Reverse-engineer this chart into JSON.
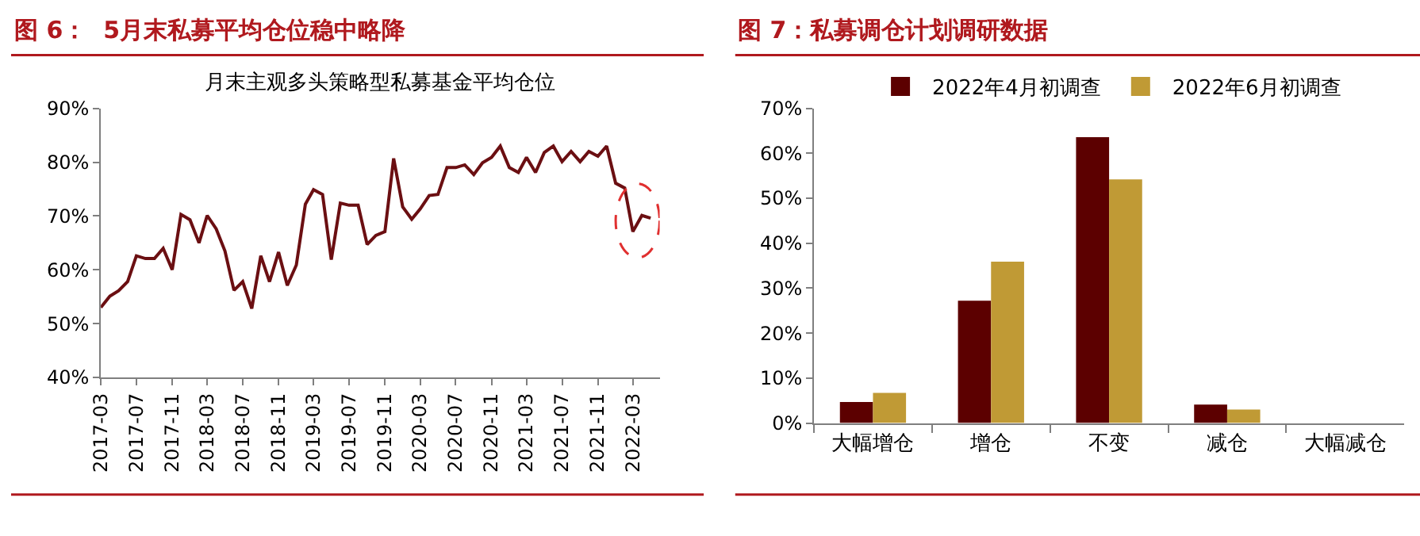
{
  "chart_data": [
    {
      "type": "line",
      "title": "图 6：  5月末私募平均仓位稳中略降",
      "subtitle": "月末主观多头策略型私募基金平均仓位",
      "x": [
        "2017-03",
        "2017-04",
        "2017-05",
        "2017-06",
        "2017-07",
        "2017-08",
        "2017-09",
        "2017-10",
        "2017-11",
        "2017-12",
        "2018-01",
        "2018-02",
        "2018-03",
        "2018-04",
        "2018-05",
        "2018-06",
        "2018-07",
        "2018-08",
        "2018-09",
        "2018-10",
        "2018-11",
        "2018-12",
        "2019-01",
        "2019-02",
        "2019-03",
        "2019-04",
        "2019-05",
        "2019-06",
        "2019-07",
        "2019-08",
        "2019-09",
        "2019-10",
        "2019-11",
        "2019-12",
        "2020-01",
        "2020-02",
        "2020-03",
        "2020-04",
        "2020-05",
        "2020-06",
        "2020-07",
        "2020-08",
        "2020-09",
        "2020-10",
        "2020-11",
        "2020-12",
        "2021-01",
        "2021-02",
        "2021-03",
        "2021-04",
        "2021-05",
        "2021-06",
        "2021-07",
        "2021-08",
        "2021-09",
        "2021-10",
        "2021-11",
        "2021-12",
        "2022-01",
        "2022-02",
        "2022-03",
        "2022-04",
        "2022-05"
      ],
      "series": [
        {
          "color": "#6b0f12",
          "values": [
            53.0,
            55.1,
            56.1,
            57.8,
            62.6,
            62.1,
            62.1,
            64.0,
            60.0,
            70.3,
            69.3,
            65.0,
            70.1,
            67.6,
            63.5,
            56.2,
            57.8,
            52.8,
            62.6,
            57.8,
            63.3,
            57.1,
            60.9,
            72.2,
            74.9,
            74.0,
            61.9,
            72.4,
            72.0,
            72.0,
            64.7,
            66.4,
            67.1,
            80.7,
            71.7,
            69.4,
            71.3,
            73.8,
            74.0,
            79.0,
            79.0,
            79.5,
            77.7,
            79.9,
            80.9,
            83.0,
            79.0,
            78.1,
            80.9,
            78.1,
            81.8,
            83.0,
            80.1,
            82.0,
            80.1,
            82.0,
            81.1,
            83.0,
            76.1,
            75.2,
            67.1,
            70.1,
            69.6
          ]
        }
      ],
      "xlim": [
        "2017-03",
        "2022-06"
      ],
      "xticks": [
        "2017-03",
        "2017-07",
        "2017-11",
        "2018-03",
        "2018-07",
        "2018-11",
        "2019-03",
        "2019-07",
        "2019-11",
        "2020-03",
        "2020-07",
        "2020-11",
        "2021-03",
        "2021-07",
        "2021-11",
        "2022-03"
      ],
      "ylim": [
        40,
        90
      ],
      "yticks": [
        {
          "value": 40,
          "label": "40%"
        },
        {
          "value": 50,
          "label": "50%"
        },
        {
          "value": 60,
          "label": "60%"
        },
        {
          "value": 70,
          "label": "70%"
        },
        {
          "value": 80,
          "label": "80%"
        },
        {
          "value": 90,
          "label": "90%"
        }
      ],
      "grid": false,
      "legend": false,
      "marker": "none",
      "line_style": "solid"
    },
    {
      "type": "bar",
      "title": "图 7：私募调仓计划调研数据",
      "categories": [
        "大幅增仓",
        "增仓",
        "不变",
        "减仓",
        "大幅减仓"
      ],
      "series": [
        {
          "name": "2022年4月初调查",
          "color": "#5c0000",
          "values": [
            4.7,
            27.2,
            63.6,
            4.1,
            0
          ]
        },
        {
          "name": "2022年6月初调查",
          "color": "#c09a35",
          "values": [
            6.7,
            35.9,
            54.2,
            3.0,
            0
          ]
        }
      ],
      "ylim": [
        0,
        70
      ],
      "yticks": [
        {
          "value": 0,
          "label": "0%"
        },
        {
          "value": 10,
          "label": "10%"
        },
        {
          "value": 20,
          "label": "20%"
        },
        {
          "value": 30,
          "label": "30%"
        },
        {
          "value": 40,
          "label": "40%"
        },
        {
          "value": 50,
          "label": "50%"
        },
        {
          "value": 60,
          "label": "60%"
        },
        {
          "value": 70,
          "label": "70%"
        }
      ],
      "grid": false,
      "legend": "top"
    }
  ]
}
